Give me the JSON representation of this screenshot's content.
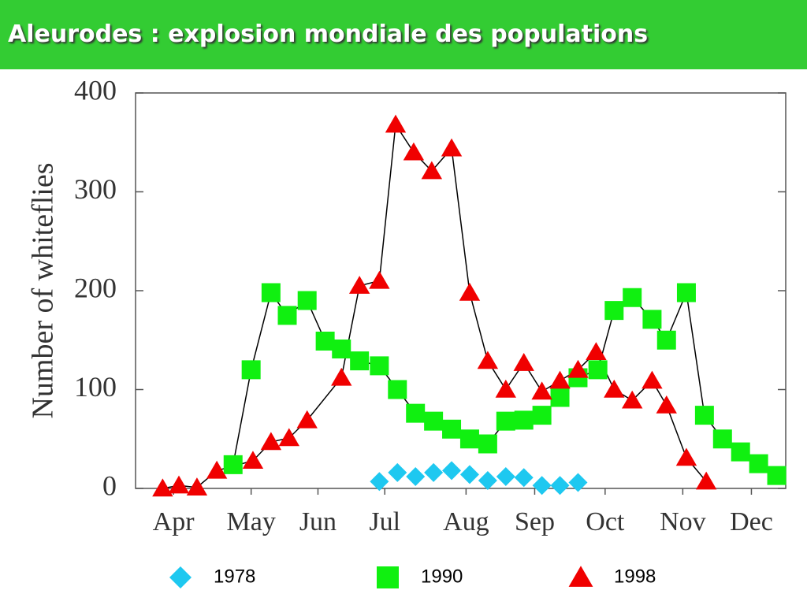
{
  "chart_data": {
    "type": "scatter",
    "title": "Aleurodes : explosion mondiale des populations",
    "y_label": "Number of whiteflies",
    "xlim": [
      0,
      36
    ],
    "xticks": [
      {
        "value": 2.1,
        "label": "Apr"
      },
      {
        "value": 6.4,
        "label": "May"
      },
      {
        "value": 10.1,
        "label": "Jun"
      },
      {
        "value": 13.8,
        "label": "Jul"
      },
      {
        "value": 18.3,
        "label": "Aug"
      },
      {
        "value": 22.1,
        "label": "Sep"
      },
      {
        "value": 26.0,
        "label": "Oct"
      },
      {
        "value": 30.3,
        "label": "Nov"
      },
      {
        "value": 34.1,
        "label": "Dec"
      }
    ],
    "ylim": [
      0,
      400
    ],
    "yticks": [
      0,
      100,
      200,
      300,
      400
    ],
    "series": [
      {
        "name": "1978",
        "color": "#1ec8f0",
        "marker": "diamond",
        "connect": false,
        "x": [
          13.5,
          14.5,
          15.5,
          16.5,
          17.5,
          18.5,
          19.5,
          20.5,
          21.5,
          22.5,
          23.5,
          24.5
        ],
        "values": [
          7,
          16,
          12,
          16,
          18,
          14,
          8,
          12,
          11,
          3,
          3,
          6
        ]
      },
      {
        "name": "1990",
        "color": "#10f010",
        "marker": "square",
        "connect": true,
        "x": [
          5.4,
          6.4,
          7.5,
          8.4,
          9.5,
          10.5,
          11.4,
          12.4,
          13.5,
          14.5,
          15.5,
          16.5,
          17.5,
          18.5,
          19.5,
          20.5,
          21.5,
          22.5,
          23.5,
          24.5,
          25.6,
          26.5,
          27.5,
          28.6,
          29.4,
          30.5,
          31.5,
          32.5,
          33.5,
          34.5,
          35.5
        ],
        "values": [
          24,
          120,
          198,
          175,
          190,
          149,
          141,
          129,
          124,
          100,
          76,
          68,
          60,
          50,
          45,
          68,
          69,
          74,
          92,
          112,
          120,
          180,
          193,
          171,
          150,
          198,
          74,
          50,
          37,
          25,
          13
        ]
      },
      {
        "name": "1998",
        "color": "#f00000",
        "marker": "triangle",
        "connect": true,
        "x": [
          1.5,
          2.4,
          3.4,
          4.5,
          6.5,
          7.5,
          8.5,
          9.5,
          11.4,
          12.4,
          13.5,
          14.4,
          15.4,
          16.4,
          17.5,
          18.5,
          19.5,
          20.5,
          21.5,
          22.5,
          23.5,
          24.5,
          25.5,
          26.5,
          27.5,
          28.6,
          29.4,
          30.5,
          31.6
        ],
        "values": [
          0,
          3,
          1,
          18,
          28,
          47,
          51,
          69,
          112,
          205,
          210,
          368,
          340,
          321,
          344,
          198,
          129,
          100,
          127,
          98,
          109,
          120,
          138,
          100,
          89,
          109,
          84,
          31,
          7
        ]
      }
    ]
  }
}
